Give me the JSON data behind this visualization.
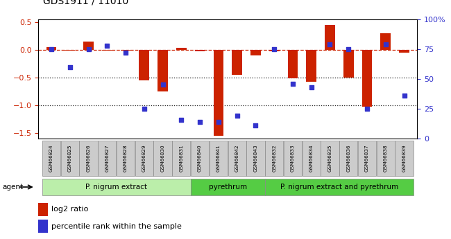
{
  "title": "GDS1911 / 11010",
  "samples": [
    "GSM66824",
    "GSM66825",
    "GSM66826",
    "GSM66827",
    "GSM66828",
    "GSM66829",
    "GSM66830",
    "GSM66831",
    "GSM66840",
    "GSM66841",
    "GSM66842",
    "GSM66843",
    "GSM66832",
    "GSM66833",
    "GSM66834",
    "GSM66835",
    "GSM66836",
    "GSM66837",
    "GSM66838",
    "GSM66839"
  ],
  "log2_ratio": [
    0.05,
    -0.02,
    0.15,
    -0.02,
    -0.02,
    -0.55,
    -0.75,
    0.03,
    -0.03,
    -1.55,
    -0.45,
    -0.1,
    -0.03,
    -0.52,
    -0.58,
    0.45,
    -0.5,
    -1.02,
    0.3,
    -0.05
  ],
  "percentile": [
    75,
    60,
    75,
    78,
    72,
    25,
    45,
    16,
    14,
    14,
    19,
    11,
    75,
    46,
    43,
    79,
    75,
    25,
    79,
    36
  ],
  "bar_color": "#cc2200",
  "dot_color": "#3333cc",
  "ylim_left": [
    -1.6,
    0.55
  ],
  "ylim_right": [
    0,
    100
  ],
  "yticks_left": [
    0.5,
    0.0,
    -0.5,
    -1.0,
    -1.5
  ],
  "yticks_right": [
    100,
    75,
    50,
    25,
    0
  ],
  "ytick_labels_right": [
    "100%",
    "75",
    "50",
    "25",
    "0"
  ],
  "hlines": [
    0.0,
    -0.5,
    -1.0
  ],
  "hline_styles": [
    "dashed",
    "dotted",
    "dotted"
  ],
  "hline_colors": [
    "#cc2200",
    "#222222",
    "#222222"
  ],
  "groups": [
    {
      "label": "P. nigrum extract",
      "start": 0,
      "end": 8,
      "color": "#bbeeaa"
    },
    {
      "label": "pyrethrum",
      "start": 8,
      "end": 12,
      "color": "#55cc44"
    },
    {
      "label": "P. nigrum extract and pyrethrum",
      "start": 12,
      "end": 20,
      "color": "#55cc44"
    }
  ],
  "agent_label": "agent",
  "legend_red": "log2 ratio",
  "legend_blue": "percentile rank within the sample",
  "background_color": "#ffffff",
  "sample_box_color": "#cccccc"
}
